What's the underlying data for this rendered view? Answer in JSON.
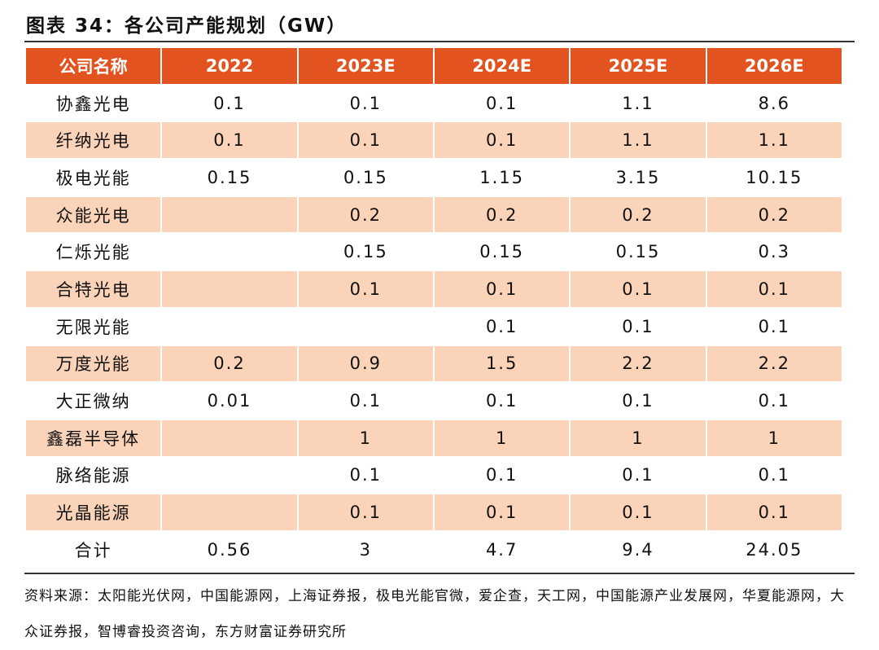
{
  "title": "图表 34：各公司产能规划（GW）",
  "table": {
    "header": [
      "公司名称",
      "2022",
      "2023E",
      "2024E",
      "2025E",
      "2026E"
    ],
    "rows": [
      [
        "协鑫光电",
        "0.1",
        "0.1",
        "0.1",
        "1.1",
        "8.6"
      ],
      [
        "纤纳光电",
        "0.1",
        "0.1",
        "0.1",
        "1.1",
        "1.1"
      ],
      [
        "极电光能",
        "0.15",
        "0.15",
        "1.15",
        "3.15",
        "10.15"
      ],
      [
        "众能光电",
        null,
        "0.2",
        "0.2",
        "0.2",
        "0.2"
      ],
      [
        "仁烁光能",
        null,
        "0.15",
        "0.15",
        "0.15",
        "0.3"
      ],
      [
        "合特光电",
        null,
        "0.1",
        "0.1",
        "0.1",
        "0.1"
      ],
      [
        "无限光能",
        null,
        null,
        "0.1",
        "0.1",
        "0.1"
      ],
      [
        "万度光能",
        "0.2",
        "0.9",
        "1.5",
        "2.2",
        "2.2"
      ],
      [
        "大正微纳",
        "0.01",
        "0.1",
        "0.1",
        "0.1",
        "0.1"
      ],
      [
        "鑫磊半导体",
        null,
        "1",
        "1",
        "1",
        "1"
      ],
      [
        "脉络能源",
        null,
        "0.1",
        "0.1",
        "0.1",
        "0.1"
      ],
      [
        "光晶能源",
        null,
        "0.1",
        "0.1",
        "0.1",
        "0.1"
      ],
      [
        "合计",
        "0.56",
        "3",
        "4.7",
        "9.4",
        "24.05"
      ]
    ]
  },
  "source": "资料来源：太阳能光伏网，中国能源网，上海证券报，极电光能官微，爱企查，天工网，中国能源产业发展网，华夏能源网，大众证券报，智博睿投资咨询，东方财富证券研究所"
}
